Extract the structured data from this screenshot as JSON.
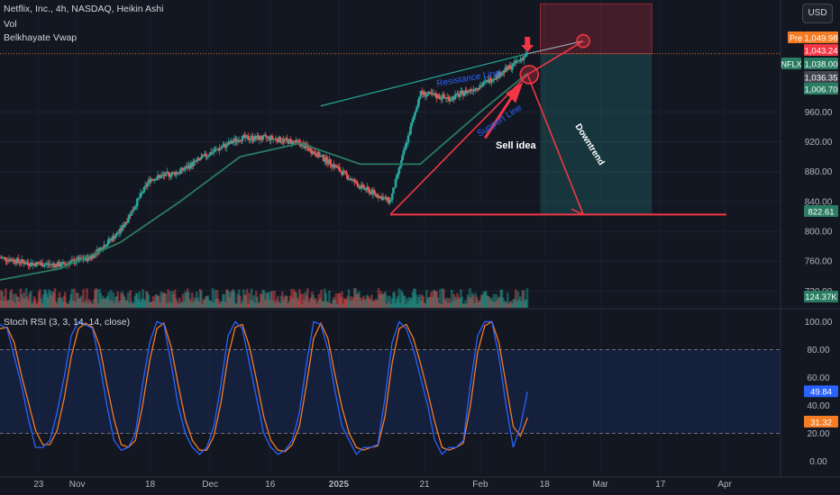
{
  "header": {
    "title": "Netflix, Inc., 4h, NASDAQ, Heikin Ashi",
    "indicator_vol": "Vol",
    "indicator_vwap": "Belkhayate Vwap",
    "currency": "USD"
  },
  "oscillator": {
    "title": "Stoch RSI (3, 3, 14, 14, close)"
  },
  "annotations": {
    "resistance": "Resistance Line",
    "support": "Support Line",
    "sell": "Sell idea",
    "downtrend": "Downtrend"
  },
  "colors": {
    "background": "#131722",
    "up": "#26a69a",
    "down": "#ef5350",
    "annotation_red": "#f23645",
    "resistance_line": "#26a69a",
    "vwap": "#2a7c62",
    "k_line": "#2962ff",
    "d_line": "#f57c24"
  },
  "chart_data": [
    {
      "type": "candlestick",
      "title": "Netflix, Inc., 4h, NASDAQ, Heikin Ashi",
      "ylim": [
        700,
        1110
      ],
      "y_ticks": [
        720.0,
        760.0,
        800.0,
        840.0,
        880.0,
        920.0,
        960.0
      ],
      "x_ticks": [
        "23",
        "Nov",
        "18",
        "Dec",
        "16",
        "2025",
        "21",
        "Feb",
        "18",
        "Mar",
        "17",
        "Apr"
      ],
      "price_labels": [
        {
          "label": "Pre",
          "value": "1,049.98"
        },
        {
          "label": "",
          "value": "1,043.24"
        },
        {
          "label": "NFLX",
          "value": "1,038.00"
        },
        {
          "label": "",
          "value": "1,036.35"
        },
        {
          "label": "",
          "value": "1,006.70"
        },
        {
          "label": "",
          "value": "822.61"
        }
      ],
      "series": [
        {
          "name": "Price (Heikin Ashi)",
          "x": [
            "2024-10-14",
            "2024-10-21",
            "2024-10-28",
            "2024-11-04",
            "2024-11-11",
            "2024-11-18",
            "2024-11-25",
            "2024-12-02",
            "2024-12-09",
            "2024-12-16",
            "2024-12-23",
            "2024-12-30",
            "2025-01-06",
            "2025-01-13",
            "2025-01-20",
            "2025-01-27",
            "2025-02-03",
            "2025-02-10",
            "2025-02-14"
          ],
          "values": [
            765,
            757,
            755,
            765,
            800,
            870,
            880,
            905,
            925,
            925,
            918,
            892,
            860,
            840,
            985,
            978,
            995,
            1020,
            1038
          ]
        },
        {
          "name": "Belkhayate Vwap",
          "x": [
            "2024-10-14",
            "2024-10-28",
            "2024-11-11",
            "2024-11-25",
            "2024-12-09",
            "2024-12-23",
            "2025-01-06",
            "2025-01-20",
            "2025-02-03",
            "2025-02-14"
          ],
          "values": [
            735,
            750,
            785,
            840,
            900,
            918,
            890,
            890,
            960,
            1012
          ]
        }
      ],
      "volume": {
        "last": "124.37K"
      }
    },
    {
      "type": "line",
      "title": "Stoch RSI (3, 3, 14, 14, close)",
      "ylim": [
        -8,
        108
      ],
      "y_ticks": [
        0.0,
        20.0,
        40.0,
        60.0,
        80.0,
        100.0
      ],
      "band": [
        20,
        80
      ],
      "series": [
        {
          "name": "K",
          "last": "49.84",
          "values": [
            98,
            95,
            75,
            55,
            30,
            10,
            10,
            15,
            35,
            60,
            90,
            100,
            98,
            95,
            70,
            40,
            15,
            8,
            10,
            20,
            55,
            85,
            100,
            98,
            70,
            40,
            20,
            10,
            5,
            10,
            25,
            55,
            90,
            100,
            95,
            70,
            45,
            20,
            10,
            5,
            8,
            15,
            35,
            70,
            100,
            98,
            80,
            50,
            25,
            15,
            5,
            10,
            10,
            12,
            45,
            85,
            100,
            95,
            80,
            60,
            40,
            15,
            5,
            10,
            10,
            15,
            55,
            90,
            100,
            100,
            75,
            40,
            10,
            25,
            49.84
          ]
        },
        {
          "name": "D",
          "last": "31.32",
          "values": [
            95,
            96,
            85,
            62,
            42,
            22,
            12,
            12,
            22,
            45,
            75,
            95,
            99,
            96,
            82,
            55,
            30,
            12,
            10,
            15,
            40,
            72,
            95,
            99,
            82,
            55,
            30,
            15,
            8,
            8,
            18,
            42,
            75,
            96,
            98,
            82,
            58,
            32,
            15,
            8,
            7,
            12,
            25,
            55,
            88,
            99,
            88,
            62,
            38,
            20,
            10,
            8,
            10,
            11,
            32,
            70,
            95,
            98,
            88,
            70,
            50,
            28,
            10,
            8,
            10,
            13,
            40,
            78,
            97,
            100,
            85,
            55,
            25,
            18,
            31.32
          ]
        }
      ]
    }
  ]
}
